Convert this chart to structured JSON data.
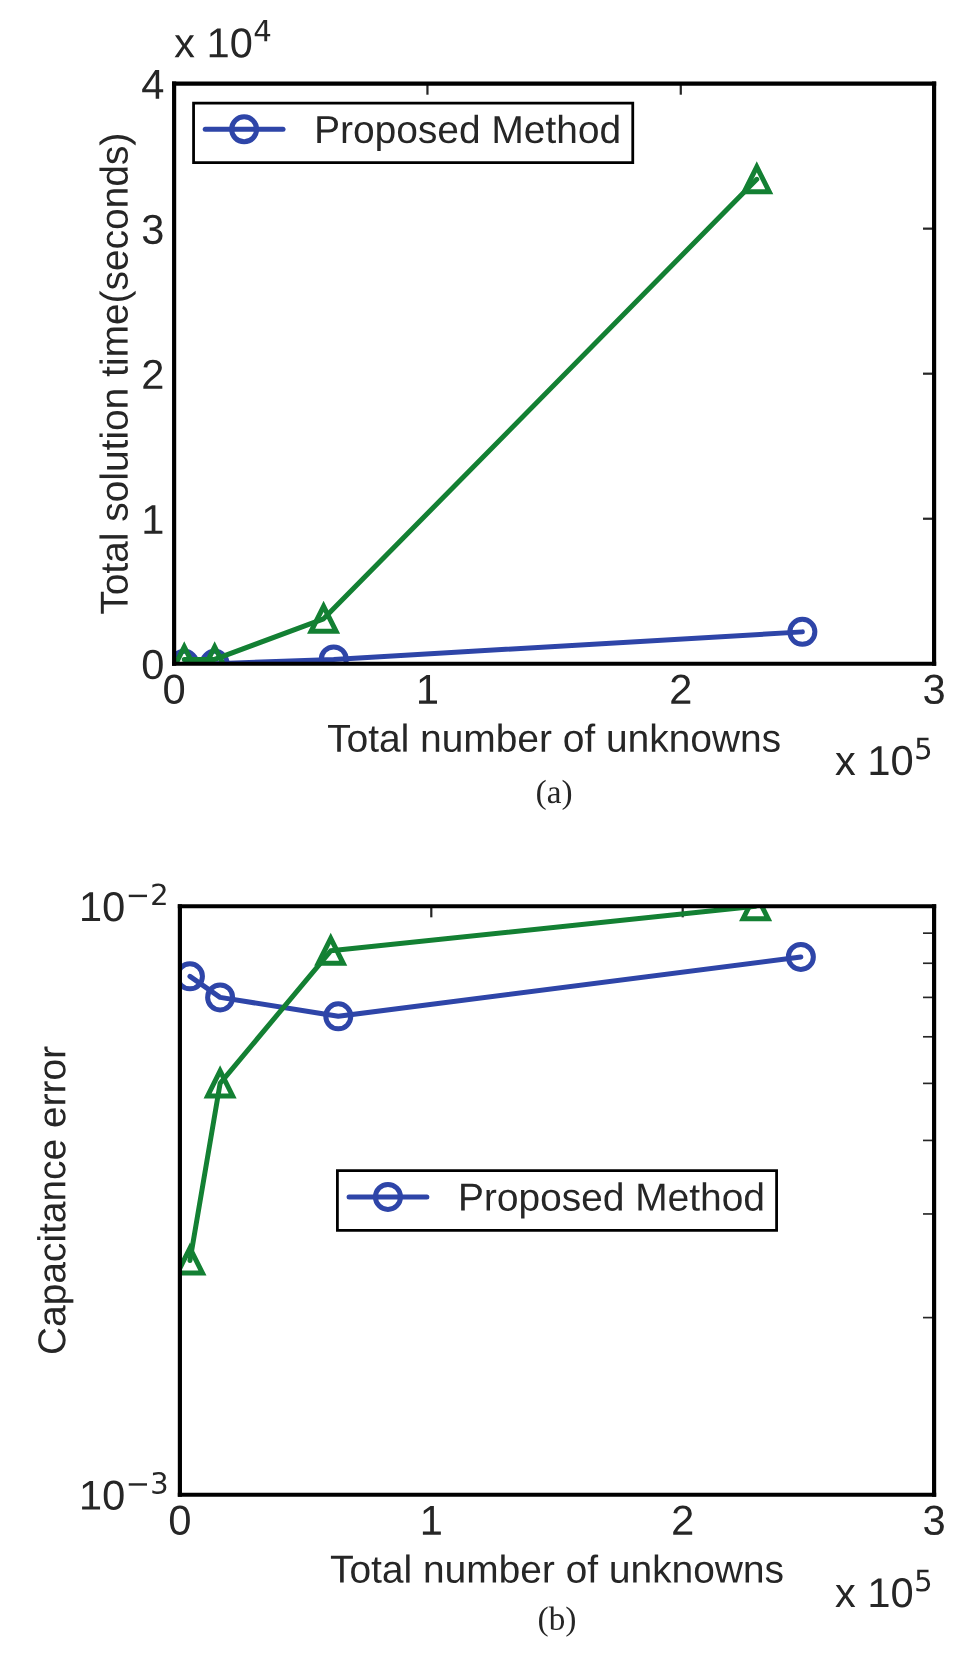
{
  "chart_data": [
    {
      "type": "line",
      "xlabel": "Total number of unknowns",
      "ylabel": "Total solution time(seconds)",
      "xlim": [
        0,
        3
      ],
      "xticks": [
        0,
        1,
        2,
        3
      ],
      "ylim": [
        0,
        4
      ],
      "yticks": [
        0,
        1,
        2,
        3,
        4
      ],
      "annotations": [
        "x 10$^{4}$",
        "x 10$^{5}$",
        "(a)"
      ],
      "legend": "top left",
      "grid": false,
      "series": [
        {
          "name": "Proposed Method",
          "color": "#2e45a8",
          "marker": "circle",
          "x": [
            0.04,
            0.16,
            0.63,
            2.48
          ],
          "values": [
            0,
            0,
            0.03,
            0.22
          ]
        },
        {
          "color": "#138033",
          "marker": "triangle",
          "x": [
            0.04,
            0.16,
            0.59,
            2.3
          ],
          "values": [
            0.03,
            0.03,
            0.31,
            3.34
          ]
        }
      ]
    },
    {
      "type": "line",
      "xlabel": "Total number of unknowns",
      "ylabel": "Capacitance error",
      "log": "y",
      "xlim": [
        0,
        3
      ],
      "xticks": [
        0,
        1,
        2,
        3
      ],
      "ylim": [
        0.001,
        0.01
      ],
      "yticks": [
        {
          "value": 0.001,
          "label": "10$^{−3}$"
        },
        {
          "value": 0.01,
          "label": "10$^{−2}$"
        }
      ],
      "annotations": [
        "x 10$^{5}$",
        "(b)"
      ],
      "legend": "center",
      "grid": false,
      "series": [
        {
          "name": "Proposed Method",
          "color": "#2e45a8",
          "marker": "circle",
          "x": [
            0.04,
            0.16,
            0.63,
            2.47
          ],
          "values": [
            0.0076,
            0.007,
            0.0065,
            0.0082
          ]
        },
        {
          "color": "#138033",
          "marker": "triangle",
          "x": [
            0.04,
            0.16,
            0.6,
            2.29
          ],
          "values": [
            0.0025,
            0.005,
            0.0084,
            0.01
          ]
        }
      ]
    }
  ]
}
